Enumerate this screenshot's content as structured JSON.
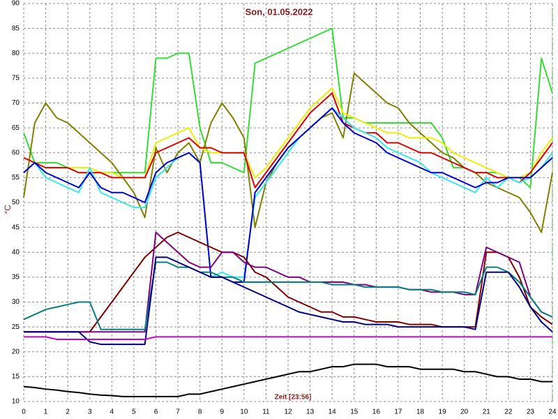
{
  "chart_data": {
    "type": "line",
    "title": "Son, 01.05.2022",
    "x_label": "Zeit [23:56]",
    "y_label": "°C",
    "x": [
      0,
      0.5,
      1,
      1.5,
      2,
      2.5,
      3,
      3.5,
      4,
      4.5,
      5,
      5.5,
      6,
      6.5,
      7,
      7.5,
      8,
      8.5,
      9,
      9.5,
      10,
      10.5,
      11,
      11.5,
      12,
      12.5,
      13,
      13.5,
      14,
      14.5,
      15,
      15.5,
      16,
      16.5,
      17,
      17.5,
      18,
      18.5,
      19,
      19.5,
      20,
      20.5,
      21,
      21.5,
      22,
      22.5,
      23,
      23.5,
      24
    ],
    "xlim": [
      0,
      24
    ],
    "xticks": [
      0,
      1,
      2,
      3,
      4,
      5,
      6,
      7,
      8,
      9,
      10,
      11,
      12,
      13,
      14,
      15,
      16,
      17,
      18,
      19,
      20,
      21,
      22,
      23,
      24
    ],
    "ylim": [
      10,
      90
    ],
    "yticks": [
      10,
      15,
      20,
      25,
      30,
      35,
      40,
      45,
      50,
      55,
      60,
      65,
      70,
      75,
      80,
      85,
      90
    ],
    "grid": true,
    "series": [
      {
        "color": "#33dd33",
        "values": [
          64,
          58,
          58,
          58,
          57,
          56,
          56,
          56,
          56,
          56,
          56,
          56,
          79,
          79,
          80,
          80,
          65,
          58,
          58,
          57,
          56,
          78,
          79,
          80,
          81,
          82,
          83,
          84,
          85,
          67,
          67,
          66,
          66,
          66,
          66,
          66,
          66,
          66,
          63,
          57,
          57,
          56,
          56,
          56,
          55,
          55,
          53,
          79,
          72
        ]
      },
      {
        "color": "#808000",
        "values": [
          51,
          66,
          70,
          67,
          66,
          64,
          62,
          60,
          58,
          55,
          52,
          47,
          61,
          56,
          60,
          62,
          58,
          66,
          70,
          67,
          63,
          45,
          54,
          58,
          61,
          63,
          65,
          67,
          68,
          63,
          76,
          74,
          72,
          70,
          69,
          66,
          64,
          62,
          60,
          59,
          57,
          56,
          54,
          53,
          52,
          51,
          48,
          44,
          56
        ]
      },
      {
        "color": "#eeee00",
        "values": [
          59,
          58,
          57,
          57,
          57,
          57,
          57,
          56,
          56,
          55,
          55,
          55,
          62,
          63,
          64,
          65,
          61,
          60,
          60,
          60,
          60,
          55,
          57,
          60,
          63,
          66,
          69,
          71,
          73,
          68,
          67,
          66,
          65,
          64,
          64,
          63,
          63,
          63,
          62,
          60,
          59,
          58,
          57,
          56,
          55,
          55,
          56,
          60,
          63
        ]
      },
      {
        "color": "#dd0000",
        "values": [
          59,
          58,
          57,
          57,
          57,
          56,
          56,
          56,
          55,
          55,
          55,
          55,
          60,
          61,
          62,
          63,
          61,
          61,
          60,
          60,
          60,
          53,
          56,
          59,
          62,
          65,
          68,
          70,
          72,
          66,
          65,
          64,
          64,
          62,
          62,
          61,
          60,
          60,
          59,
          58,
          57,
          56,
          56,
          55,
          55,
          54,
          56,
          59,
          62
        ]
      },
      {
        "color": "#33e8e8",
        "values": [
          56,
          58,
          55,
          54,
          53,
          52,
          57,
          52,
          51,
          50,
          49,
          49,
          55,
          57,
          59,
          60,
          58,
          35,
          36,
          35,
          35,
          51,
          54,
          57,
          60,
          63,
          65,
          67,
          69,
          67,
          65,
          64,
          63,
          61,
          60,
          59,
          58,
          56,
          55,
          54,
          53,
          52,
          55,
          53,
          55,
          54,
          55,
          57,
          60
        ]
      },
      {
        "color": "#0000cc",
        "values": [
          56,
          58,
          56,
          55,
          54,
          53,
          56,
          53,
          52,
          52,
          51,
          50,
          56,
          58,
          59,
          60,
          58,
          35,
          35,
          34,
          34,
          52,
          55,
          58,
          61,
          63,
          65,
          67,
          69,
          66,
          64,
          63,
          62,
          60,
          59,
          58,
          57,
          56,
          56,
          55,
          54,
          53,
          54,
          54,
          55,
          55,
          55,
          57,
          59
        ]
      },
      {
        "color": "#800000",
        "values": [
          24,
          24,
          24,
          24,
          24,
          24,
          24,
          27,
          30,
          33,
          36,
          39,
          41,
          43,
          44,
          43,
          42,
          41,
          40,
          40,
          39,
          36,
          35,
          33,
          31,
          30,
          29,
          28,
          28,
          27,
          27,
          26.5,
          26,
          26,
          26,
          25.5,
          25.5,
          25.5,
          25,
          25,
          25,
          25,
          40,
          40,
          39,
          35,
          29,
          27,
          25.5
        ]
      },
      {
        "color": "#800080",
        "values": [
          24,
          24,
          24,
          24,
          24,
          24,
          24,
          24,
          24,
          24,
          24,
          24,
          44,
          42,
          40,
          38,
          37,
          37,
          40,
          40,
          38,
          37,
          37,
          36,
          35,
          35,
          34,
          34,
          34,
          34,
          33.5,
          33.5,
          33,
          33,
          33,
          32.5,
          32.5,
          32,
          32,
          32,
          31.5,
          31.5,
          41,
          40,
          39,
          38,
          31,
          28,
          27
        ]
      },
      {
        "color": "#008080",
        "values": [
          26.5,
          27.5,
          28.5,
          29,
          29.5,
          30,
          30,
          24.5,
          24.5,
          24.5,
          24.5,
          24.5,
          38,
          38,
          37,
          37,
          36,
          36,
          35,
          35,
          34,
          34,
          34,
          34,
          34,
          34,
          34,
          34,
          33.5,
          33.5,
          33.5,
          33,
          33,
          33,
          33,
          32.5,
          32.5,
          32.5,
          32,
          32,
          32,
          31.5,
          37,
          37,
          36,
          34,
          31,
          28,
          27
        ]
      },
      {
        "color": "#000080",
        "values": [
          24,
          24,
          24,
          24,
          24,
          24,
          22,
          21.5,
          21.5,
          21.5,
          21.5,
          21.5,
          39,
          39,
          38,
          37,
          36,
          35,
          35,
          34,
          33,
          32,
          31,
          30,
          29,
          28,
          27.5,
          27,
          26.5,
          26,
          26,
          25.5,
          25.5,
          25.5,
          25,
          25,
          25,
          25,
          25,
          25,
          25,
          24.5,
          36,
          36,
          36,
          33,
          29,
          26,
          24
        ]
      },
      {
        "color": "#cc00cc",
        "values": [
          23,
          23,
          23,
          22.5,
          22.5,
          22.5,
          22.5,
          22.5,
          22.5,
          22.5,
          22.5,
          22.5,
          23,
          23,
          23,
          23,
          23,
          23,
          23,
          23,
          23,
          23,
          23,
          23,
          23,
          23,
          23,
          23,
          23,
          23,
          23,
          23,
          23,
          23,
          23,
          23,
          23,
          23,
          23,
          23,
          23,
          23,
          23,
          23,
          23,
          23,
          23,
          23,
          23
        ]
      },
      {
        "color": "#000000",
        "values": [
          13,
          12.8,
          12.5,
          12.3,
          12,
          11.8,
          11.5,
          11.3,
          11.2,
          11,
          11,
          11,
          11,
          11,
          11,
          11.5,
          11.5,
          12,
          12.5,
          13,
          13.5,
          14,
          14.5,
          15,
          15.5,
          16,
          16,
          16.5,
          17,
          17,
          17.5,
          17.5,
          17.5,
          17,
          17,
          17,
          16.5,
          16.5,
          16.5,
          16.5,
          16,
          16,
          15.5,
          15,
          15,
          14.5,
          14.5,
          14,
          14
        ]
      }
    ]
  }
}
